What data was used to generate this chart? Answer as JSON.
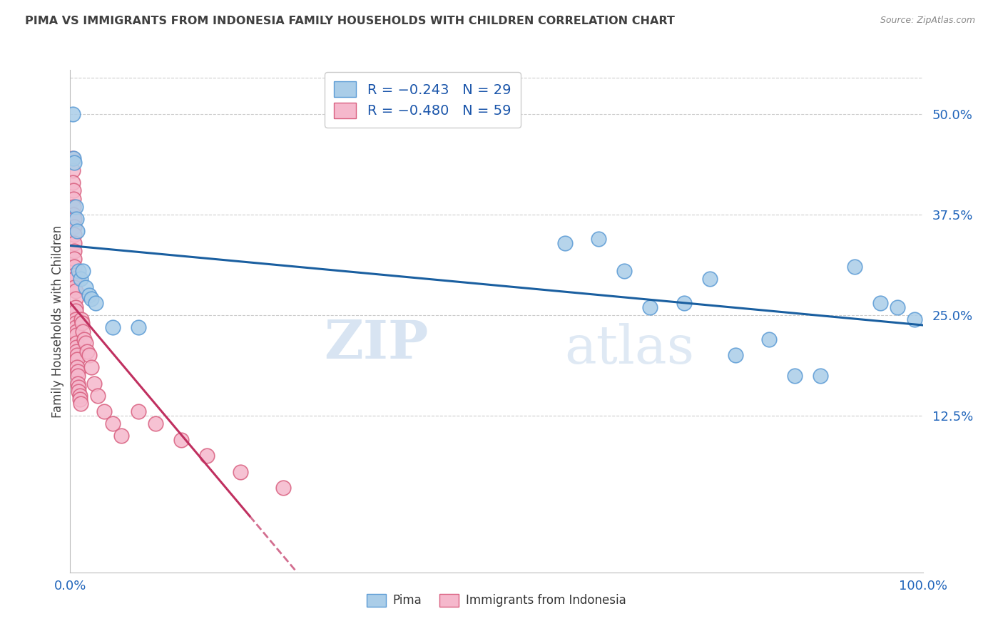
{
  "title": "PIMA VS IMMIGRANTS FROM INDONESIA FAMILY HOUSEHOLDS WITH CHILDREN CORRELATION CHART",
  "source": "Source: ZipAtlas.com",
  "ylabel": "Family Households with Children",
  "ytick_labels": [
    "12.5%",
    "25.0%",
    "37.5%",
    "50.0%"
  ],
  "ytick_values": [
    0.125,
    0.25,
    0.375,
    0.5
  ],
  "legend_label1": "Pima",
  "legend_label2": "Immigrants from Indonesia",
  "legend_R1": "-0.243",
  "legend_N1": "29",
  "legend_R2": "-0.480",
  "legend_N2": "59",
  "pima_color": "#aacde8",
  "pima_edge_color": "#5b9bd5",
  "indo_color": "#f5b8cc",
  "indo_edge_color": "#d96080",
  "trendline_pima_color": "#1a5fa0",
  "trendline_indo_color": "#c03060",
  "pima_x": [
    0.003,
    0.004,
    0.005,
    0.006,
    0.007,
    0.008,
    0.01,
    0.012,
    0.015,
    0.018,
    0.022,
    0.025,
    0.03,
    0.05,
    0.08,
    0.58,
    0.62,
    0.65,
    0.68,
    0.72,
    0.75,
    0.78,
    0.82,
    0.85,
    0.88,
    0.92,
    0.95,
    0.97,
    0.99
  ],
  "pima_y": [
    0.5,
    0.445,
    0.44,
    0.385,
    0.37,
    0.355,
    0.305,
    0.295,
    0.305,
    0.285,
    0.275,
    0.27,
    0.265,
    0.235,
    0.235,
    0.34,
    0.345,
    0.305,
    0.26,
    0.265,
    0.295,
    0.2,
    0.22,
    0.175,
    0.175,
    0.31,
    0.265,
    0.26,
    0.245
  ],
  "indo_x": [
    0.003,
    0.003,
    0.003,
    0.004,
    0.004,
    0.004,
    0.004,
    0.005,
    0.005,
    0.005,
    0.005,
    0.005,
    0.005,
    0.005,
    0.005,
    0.005,
    0.005,
    0.006,
    0.006,
    0.006,
    0.006,
    0.006,
    0.006,
    0.006,
    0.007,
    0.007,
    0.007,
    0.007,
    0.007,
    0.008,
    0.008,
    0.008,
    0.009,
    0.009,
    0.009,
    0.01,
    0.01,
    0.011,
    0.011,
    0.012,
    0.013,
    0.014,
    0.015,
    0.016,
    0.018,
    0.02,
    0.022,
    0.025,
    0.028,
    0.032,
    0.04,
    0.05,
    0.06,
    0.08,
    0.1,
    0.13,
    0.16,
    0.2,
    0.25
  ],
  "indo_y": [
    0.445,
    0.43,
    0.415,
    0.405,
    0.395,
    0.385,
    0.375,
    0.37,
    0.36,
    0.35,
    0.34,
    0.33,
    0.32,
    0.31,
    0.3,
    0.295,
    0.285,
    0.28,
    0.27,
    0.26,
    0.255,
    0.245,
    0.24,
    0.235,
    0.23,
    0.225,
    0.215,
    0.21,
    0.205,
    0.2,
    0.195,
    0.185,
    0.18,
    0.175,
    0.165,
    0.16,
    0.155,
    0.15,
    0.145,
    0.14,
    0.245,
    0.24,
    0.23,
    0.22,
    0.215,
    0.205,
    0.2,
    0.185,
    0.165,
    0.15,
    0.13,
    0.115,
    0.1,
    0.13,
    0.115,
    0.095,
    0.075,
    0.055,
    0.035
  ],
  "xmin": 0.0,
  "xmax": 1.0,
  "ymin": -0.07,
  "ymax": 0.555,
  "watermark_top": "ZIP",
  "watermark_bot": "atlas",
  "background_color": "#ffffff",
  "grid_color": "#cccccc",
  "title_color": "#404040",
  "source_color": "#888888",
  "axis_tick_color": "#2266bb",
  "ylabel_color": "#444444"
}
